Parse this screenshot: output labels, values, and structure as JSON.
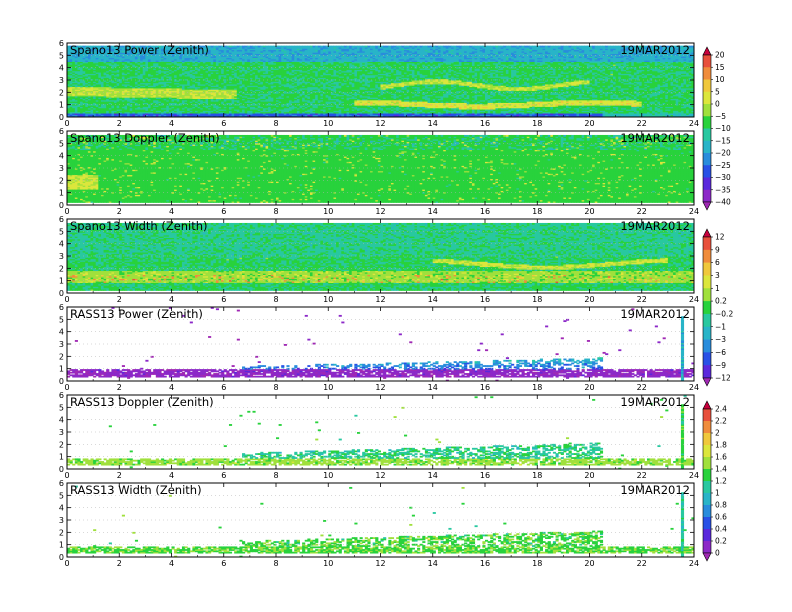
{
  "chart_data": [
    {
      "type": "heatmap",
      "title": "Spano13 Power (Zenith)",
      "date": "19MAR2012",
      "xlim": [
        0,
        24
      ],
      "ylim": [
        0,
        6
      ],
      "xticks": [
        "0",
        "2",
        "4",
        "6",
        "8",
        "10",
        "12",
        "14",
        "16",
        "18",
        "20",
        "22",
        "24"
      ],
      "yticks": [
        "0",
        "1",
        "2",
        "3",
        "4",
        "5",
        "6"
      ],
      "colorbar": "power"
    },
    {
      "type": "heatmap",
      "title": "Spano13 Doppler (Zenith)",
      "date": "19MAR2012",
      "xlim": [
        0,
        24
      ],
      "ylim": [
        0,
        6
      ],
      "xticks": [
        "0",
        "2",
        "4",
        "6",
        "8",
        "10",
        "12",
        "14",
        "16",
        "18",
        "20",
        "22",
        "24"
      ],
      "yticks": [
        "0",
        "1",
        "2",
        "3",
        "4",
        "5",
        "6"
      ],
      "colorbar": "doppler"
    },
    {
      "type": "heatmap",
      "title": "Spano13 Width (Zenith)",
      "date": "19MAR2012",
      "xlim": [
        0,
        24
      ],
      "ylim": [
        0,
        6
      ],
      "xticks": [
        "0",
        "2",
        "4",
        "6",
        "8",
        "10",
        "12",
        "14",
        "16",
        "18",
        "20",
        "22",
        "24"
      ],
      "yticks": [
        "0",
        "1",
        "2",
        "3",
        "4",
        "5",
        "6"
      ],
      "colorbar": "doppler"
    },
    {
      "type": "heatmap",
      "title": "RASS13 Power (Zenith)",
      "date": "19MAR2012",
      "xlim": [
        0,
        24
      ],
      "ylim": [
        0,
        6
      ],
      "xticks": [
        "0",
        "2",
        "4",
        "6",
        "8",
        "10",
        "12",
        "14",
        "16",
        "18",
        "20",
        "22",
        "24"
      ],
      "yticks": [
        "0",
        "1",
        "2",
        "3",
        "4",
        "5",
        "6"
      ],
      "colorbar": "rasspower"
    },
    {
      "type": "heatmap",
      "title": "RASS13 Doppler (Zenith)",
      "date": "19MAR2012",
      "xlim": [
        0,
        24
      ],
      "ylim": [
        0,
        6
      ],
      "xticks": [
        "0",
        "2",
        "4",
        "6",
        "8",
        "10",
        "12",
        "14",
        "16",
        "18",
        "20",
        "22",
        "24"
      ],
      "yticks": [
        "0",
        "1",
        "2",
        "3",
        "4",
        "5",
        "6"
      ],
      "colorbar": "rassdoppler"
    },
    {
      "type": "heatmap",
      "title": "RASS13 Width (Zenith)",
      "date": "19MAR2012",
      "xlim": [
        0,
        24
      ],
      "ylim": [
        0,
        6
      ],
      "xticks": [
        "0",
        "2",
        "4",
        "6",
        "8",
        "10",
        "12",
        "14",
        "16",
        "18",
        "20",
        "22",
        "24"
      ],
      "yticks": [
        "0",
        "1",
        "2",
        "3",
        "4",
        "5",
        "6"
      ],
      "colorbar": "rassdoppler"
    }
  ],
  "colorbars": {
    "power": {
      "labels": [
        "20",
        "15",
        "10",
        "5",
        "0",
        "−5",
        "−10",
        "−15",
        "−20",
        "−25",
        "−30",
        "−35",
        "−40"
      ],
      "colors": [
        "#c8003c",
        "#e8503c",
        "#f08c3c",
        "#f0c83c",
        "#dce63c",
        "#a0e03c",
        "#28d23c",
        "#28c8a0",
        "#28b4c8",
        "#288cdc",
        "#2850e6",
        "#5a28dc",
        "#8c28c8",
        "#a028b4"
      ]
    },
    "doppler": {
      "labels": [
        "12",
        "9",
        "6",
        "3",
        "1",
        "0.2",
        "−0.2",
        "−1",
        "−3",
        "−6",
        "−9",
        "−12"
      ],
      "colors": [
        "#c8003c",
        "#e8503c",
        "#f08c3c",
        "#f0c83c",
        "#dce63c",
        "#a0e03c",
        "#28d23c",
        "#28c8a0",
        "#28b4c8",
        "#288cdc",
        "#2850e6",
        "#5a28dc",
        "#a028b4"
      ]
    },
    "rasspower": {
      "labels": [
        "2.4",
        "2.2",
        "2",
        "1.8",
        "1.6",
        "1.4",
        "1.2",
        "1",
        "0.8",
        "0.6",
        "0.4",
        "0.2",
        "0"
      ],
      "colors": [
        "#c8003c",
        "#e8503c",
        "#f08c3c",
        "#f0c83c",
        "#dce63c",
        "#a0e03c",
        "#28d23c",
        "#28c8a0",
        "#28b4c8",
        "#288cdc",
        "#2850e6",
        "#5a28dc",
        "#8c28c8",
        "#a028b4"
      ]
    }
  },
  "colorscale": [
    "#a028b4",
    "#8c28c8",
    "#5a28dc",
    "#2850e6",
    "#288cdc",
    "#28b4c8",
    "#28c8a0",
    "#28d23c",
    "#a0e03c",
    "#dce63c",
    "#f0c83c",
    "#f08c3c",
    "#e8503c",
    "#c8003c"
  ]
}
